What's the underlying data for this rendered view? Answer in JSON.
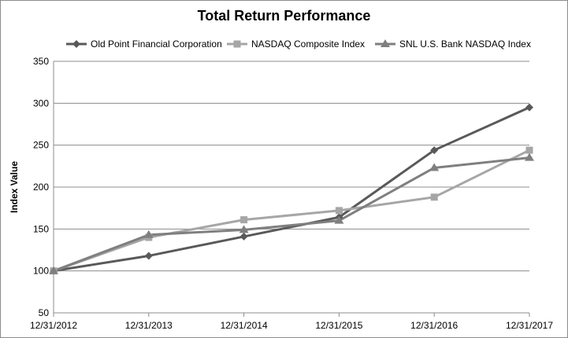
{
  "chart_data": {
    "type": "line",
    "title": "Total Return Performance",
    "xlabel": "",
    "ylabel": "Index Value",
    "categories": [
      "12/31/2012",
      "12/31/2013",
      "12/31/2014",
      "12/31/2015",
      "12/31/2016",
      "12/31/2017"
    ],
    "ylim": [
      50,
      350
    ],
    "yticks": [
      50,
      100,
      150,
      200,
      250,
      300,
      350
    ],
    "grid": "horizontal",
    "legend_position": "top",
    "series": [
      {
        "name": "Old Point Financial Corporation",
        "marker": "diamond",
        "color": "#595959",
        "values": [
          100,
          118,
          141,
          164,
          244,
          295
        ]
      },
      {
        "name": "NASDAQ Composite Index",
        "marker": "square",
        "color": "#a6a6a6",
        "values": [
          100,
          140,
          161,
          172,
          188,
          244
        ]
      },
      {
        "name": "SNL U.S. Bank NASDAQ Index",
        "marker": "triangle",
        "color": "#7f7f7f",
        "values": [
          100,
          143,
          149,
          160,
          223,
          235
        ]
      }
    ]
  }
}
